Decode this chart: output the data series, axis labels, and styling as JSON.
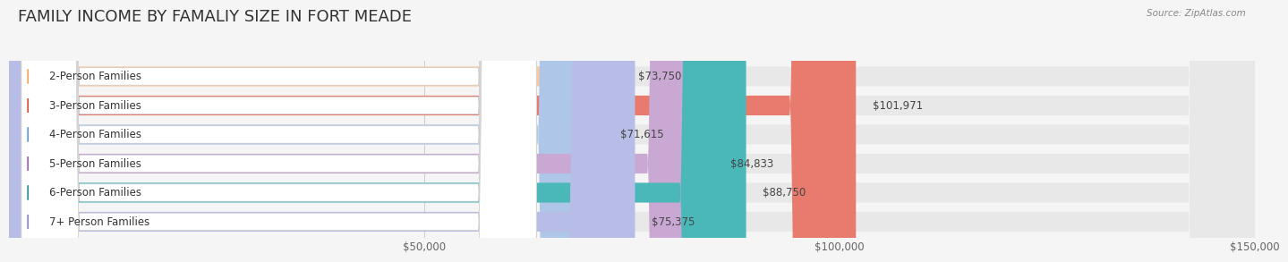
{
  "title": "FAMILY INCOME BY FAMALIY SIZE IN FORT MEADE",
  "source": "Source: ZipAtlas.com",
  "categories": [
    "2-Person Families",
    "3-Person Families",
    "4-Person Families",
    "5-Person Families",
    "6-Person Families",
    "7+ Person Families"
  ],
  "values": [
    73750,
    101971,
    71615,
    84833,
    88750,
    75375
  ],
  "bar_colors": [
    "#f9c89b",
    "#e87b6e",
    "#aec6e8",
    "#c9a8d4",
    "#4ab8b8",
    "#b8bde8"
  ],
  "dot_colors": [
    "#f0a860",
    "#d94f3f",
    "#6699cc",
    "#9966aa",
    "#2a9090",
    "#8888cc"
  ],
  "value_labels": [
    "$73,750",
    "$101,971",
    "$71,615",
    "$84,833",
    "$88,750",
    "$75,375"
  ],
  "xlim": [
    0,
    150000
  ],
  "xticks": [
    0,
    50000,
    100000,
    150000
  ],
  "xticklabels": [
    "",
    "$50,000",
    "$100,000",
    "$150,000"
  ],
  "background_color": "#f5f5f5",
  "bar_bg_color": "#e8e8e8",
  "title_fontsize": 13,
  "label_fontsize": 8.5,
  "value_fontsize": 8.5,
  "source_fontsize": 7.5
}
